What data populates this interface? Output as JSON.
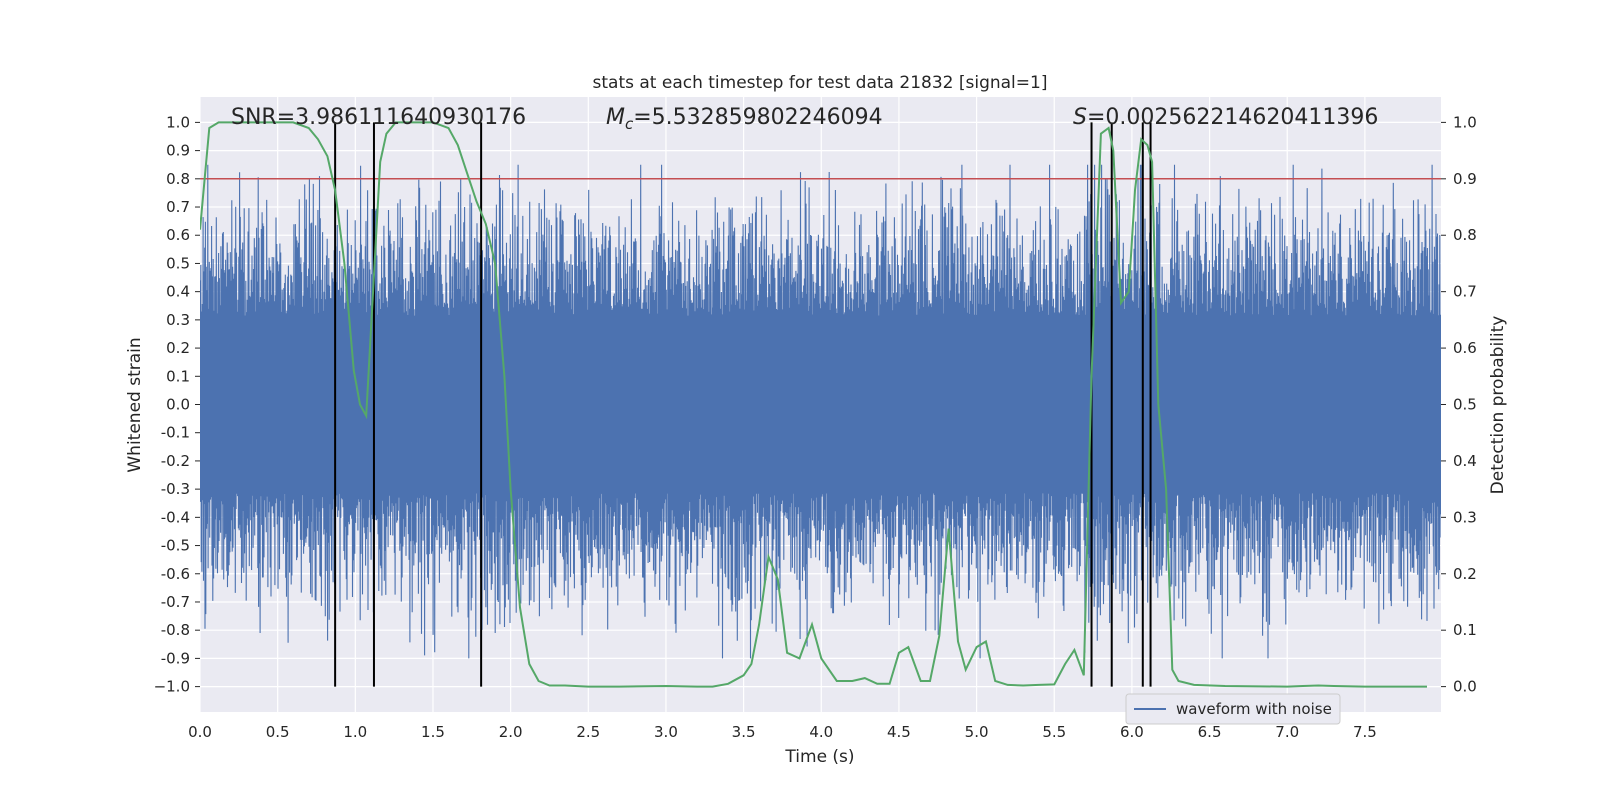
{
  "chart_data": {
    "type": "line",
    "title": "stats at each timestep for test data 21832 [signal=1]",
    "xlabel": "Time (s)",
    "ylabel": "Whitened strain",
    "y2label": "Detection probability",
    "xlim": [
      0,
      7.99
    ],
    "ylim": [
      -1.09,
      1.09
    ],
    "y2lim": [
      -0.045,
      1.045
    ],
    "x_ticks": [
      "0.0",
      "0.5",
      "1.0",
      "1.5",
      "2.0",
      "2.5",
      "3.0",
      "3.5",
      "4.0",
      "4.5",
      "5.0",
      "5.5",
      "6.0",
      "6.5",
      "7.0",
      "7.5"
    ],
    "y_ticks": [
      "1.0",
      "0.9",
      "0.8",
      "0.7",
      "0.6",
      "0.5",
      "0.4",
      "0.3",
      "0.2",
      "0.1",
      "0.0",
      "-0.1",
      "-0.2",
      "-0.3",
      "-0.4",
      "-0.5",
      "-0.6",
      "-0.7",
      "-0.8",
      "-0.9",
      "−1.0"
    ],
    "y2_ticks": [
      "1.0",
      "0.9",
      "0.8",
      "0.7",
      "0.6",
      "0.5",
      "0.4",
      "0.3",
      "0.2",
      "0.1",
      "0.0"
    ],
    "threshold": {
      "value": 0.8,
      "color": "#c44e52"
    },
    "annotations": {
      "snr": "SNR=3.986111640930176",
      "mc_symbol": "M",
      "mc_sub": "c",
      "mc_value": "=5.532859802246094",
      "s_symbol": "S",
      "s_value": "=0.002562214620411396"
    },
    "vertical_lines": [
      0.87,
      1.12,
      1.81,
      5.74,
      5.87,
      6.07,
      6.12
    ],
    "legend": {
      "label": "waveform with noise",
      "position": "lower-center-right"
    },
    "series": [
      {
        "name": "waveform with noise",
        "color": "#4c72b0",
        "axis": "left",
        "kind": "noise",
        "typical_amplitude": 0.42,
        "peak_high": 0.85,
        "peak_low": -0.9
      },
      {
        "name": "detection probability",
        "color": "#55a868",
        "axis": "right",
        "x": [
          0.0,
          0.06,
          0.12,
          0.2,
          0.3,
          0.4,
          0.5,
          0.6,
          0.7,
          0.76,
          0.82,
          0.87,
          0.93,
          0.99,
          1.03,
          1.07,
          1.12,
          1.16,
          1.2,
          1.26,
          1.32,
          1.4,
          1.5,
          1.6,
          1.66,
          1.72,
          1.78,
          1.84,
          1.9,
          1.96,
          2.0,
          2.06,
          2.12,
          2.18,
          2.25,
          2.35,
          2.5,
          2.7,
          3.0,
          3.2,
          3.3,
          3.4,
          3.5,
          3.55,
          3.6,
          3.66,
          3.72,
          3.78,
          3.86,
          3.94,
          4.0,
          4.1,
          4.2,
          4.28,
          4.36,
          4.44,
          4.5,
          4.56,
          4.64,
          4.7,
          4.76,
          4.82,
          4.88,
          4.93,
          5.0,
          5.06,
          5.12,
          5.2,
          5.3,
          5.4,
          5.5,
          5.57,
          5.63,
          5.69,
          5.74,
          5.8,
          5.85,
          5.88,
          5.93,
          5.98,
          6.02,
          6.06,
          6.1,
          6.13,
          6.17,
          6.22,
          6.26,
          6.3,
          6.4,
          6.6,
          7.0,
          7.1,
          7.2,
          7.3,
          7.5,
          7.7,
          7.9
        ],
        "y": [
          0.81,
          0.99,
          1.0,
          1.0,
          1.0,
          1.0,
          1.0,
          1.0,
          0.99,
          0.97,
          0.94,
          0.88,
          0.75,
          0.56,
          0.5,
          0.48,
          0.73,
          0.93,
          0.98,
          1.0,
          1.0,
          1.0,
          1.0,
          0.99,
          0.96,
          0.91,
          0.86,
          0.82,
          0.75,
          0.55,
          0.35,
          0.14,
          0.04,
          0.01,
          0.002,
          0.002,
          0.0,
          0.0,
          0.001,
          0.0,
          0.0,
          0.005,
          0.02,
          0.04,
          0.11,
          0.23,
          0.19,
          0.06,
          0.05,
          0.11,
          0.05,
          0.01,
          0.01,
          0.015,
          0.005,
          0.005,
          0.06,
          0.07,
          0.01,
          0.01,
          0.09,
          0.28,
          0.08,
          0.03,
          0.07,
          0.08,
          0.01,
          0.003,
          0.002,
          0.003,
          0.004,
          0.04,
          0.065,
          0.02,
          0.55,
          0.98,
          0.99,
          0.95,
          0.68,
          0.7,
          0.88,
          0.97,
          0.96,
          0.93,
          0.5,
          0.35,
          0.03,
          0.01,
          0.003,
          0.001,
          0.0,
          0.001,
          0.002,
          0.001,
          0.0,
          0.0,
          0.0
        ]
      }
    ]
  }
}
